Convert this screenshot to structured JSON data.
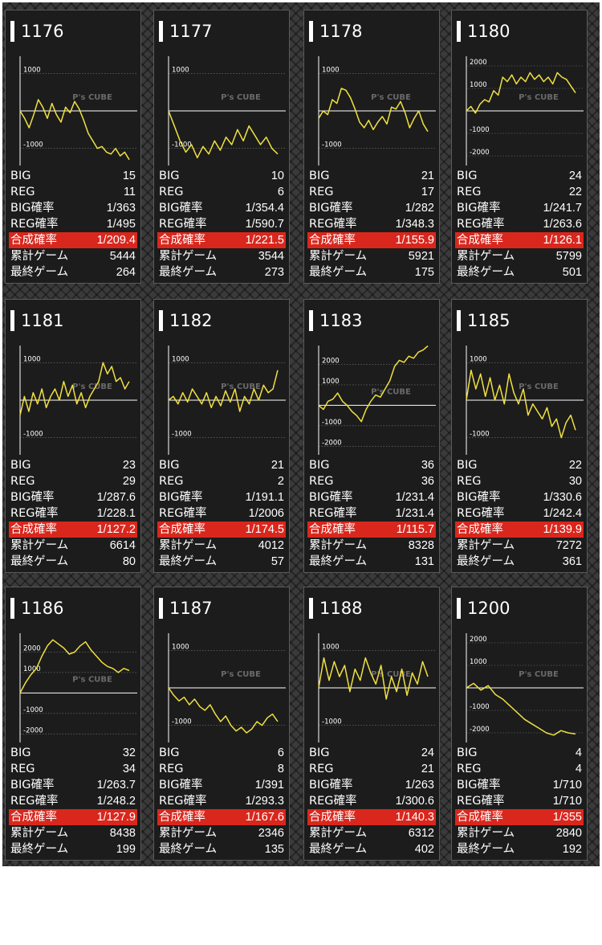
{
  "labels": {
    "big": "BIG",
    "reg": "REG",
    "big_rate": "BIG確率",
    "reg_rate": "REG確率",
    "combined": "合成確率",
    "total_games": "累計ゲーム",
    "last_game": "最終ゲーム"
  },
  "watermark": "P's CUBE",
  "colors": {
    "line": "#f0e040",
    "axis": "#ffffff",
    "highlight": "#d9271d",
    "card_bg": "#1c1c1c"
  },
  "machines": [
    {
      "id": "1176",
      "big": "15",
      "reg": "11",
      "big_rate": "1/363",
      "reg_rate": "1/495",
      "combined": "1/209.4",
      "total_games": "5444",
      "last_game": "264"
    },
    {
      "id": "1177",
      "big": "10",
      "reg": "6",
      "big_rate": "1/354.4",
      "reg_rate": "1/590.7",
      "combined": "1/221.5",
      "total_games": "3544",
      "last_game": "273"
    },
    {
      "id": "1178",
      "big": "21",
      "reg": "17",
      "big_rate": "1/282",
      "reg_rate": "1/348.3",
      "combined": "1/155.9",
      "total_games": "5921",
      "last_game": "175"
    },
    {
      "id": "1180",
      "big": "24",
      "reg": "22",
      "big_rate": "1/241.7",
      "reg_rate": "1/263.6",
      "combined": "1/126.1",
      "total_games": "5799",
      "last_game": "501"
    },
    {
      "id": "1181",
      "big": "23",
      "reg": "29",
      "big_rate": "1/287.6",
      "reg_rate": "1/228.1",
      "combined": "1/127.2",
      "total_games": "6614",
      "last_game": "80"
    },
    {
      "id": "1182",
      "big": "21",
      "reg": "2",
      "big_rate": "1/191.1",
      "reg_rate": "1/2006",
      "combined": "1/174.5",
      "total_games": "4012",
      "last_game": "57"
    },
    {
      "id": "1183",
      "big": "36",
      "reg": "36",
      "big_rate": "1/231.4",
      "reg_rate": "1/231.4",
      "combined": "1/115.7",
      "total_games": "8328",
      "last_game": "131"
    },
    {
      "id": "1185",
      "big": "22",
      "reg": "30",
      "big_rate": "1/330.6",
      "reg_rate": "1/242.4",
      "combined": "1/139.9",
      "total_games": "7272",
      "last_game": "361"
    },
    {
      "id": "1186",
      "big": "32",
      "reg": "34",
      "big_rate": "1/263.7",
      "reg_rate": "1/248.2",
      "combined": "1/127.9",
      "total_games": "8438",
      "last_game": "199"
    },
    {
      "id": "1187",
      "big": "6",
      "reg": "8",
      "big_rate": "1/391",
      "reg_rate": "1/293.3",
      "combined": "1/167.6",
      "total_games": "2346",
      "last_game": "135"
    },
    {
      "id": "1188",
      "big": "24",
      "reg": "21",
      "big_rate": "1/263",
      "reg_rate": "1/300.6",
      "combined": "1/140.3",
      "total_games": "6312",
      "last_game": "402"
    },
    {
      "id": "1200",
      "big": "4",
      "reg": "4",
      "big_rate": "1/710",
      "reg_rate": "1/710",
      "combined": "1/355",
      "total_games": "2840",
      "last_game": "192"
    }
  ],
  "chart_data": [
    {
      "type": "line",
      "name": "1176",
      "ylim": [
        -1500,
        1500
      ],
      "yticks": [
        1000,
        -1000
      ],
      "y": [
        0,
        -200,
        -450,
        -100,
        300,
        100,
        -200,
        200,
        -100,
        -300,
        100,
        -50,
        250,
        50,
        -250,
        -600,
        -800,
        -1000,
        -950,
        -1100,
        -1150,
        -1000,
        -1200,
        -1100,
        -1300
      ]
    },
    {
      "type": "line",
      "name": "1177",
      "ylim": [
        -1500,
        1500
      ],
      "yticks": [
        1000,
        -1000
      ],
      "y": [
        0,
        -400,
        -800,
        -1100,
        -900,
        -1250,
        -950,
        -1150,
        -800,
        -1050,
        -700,
        -900,
        -500,
        -800,
        -400,
        -650,
        -900,
        -700,
        -1000,
        -1150
      ]
    },
    {
      "type": "line",
      "name": "1178",
      "ylim": [
        -1500,
        1500
      ],
      "yticks": [
        1000,
        -1000
      ],
      "y": [
        -200,
        0,
        -100,
        300,
        200,
        600,
        550,
        350,
        50,
        -300,
        -450,
        -250,
        -500,
        -300,
        -150,
        -350,
        100,
        50,
        250,
        -50,
        -450,
        -200,
        0,
        -350,
        -550
      ]
    },
    {
      "type": "line",
      "name": "1180",
      "ylim": [
        -2500,
        2500
      ],
      "yticks": [
        2000,
        1000,
        -1000,
        -2000
      ],
      "y": [
        0,
        200,
        -100,
        300,
        500,
        400,
        900,
        700,
        1500,
        1300,
        1600,
        1200,
        1500,
        1300,
        1700,
        1400,
        1600,
        1300,
        1500,
        1200,
        1700,
        1500,
        1400,
        1100,
        800
      ]
    },
    {
      "type": "line",
      "name": "1181",
      "ylim": [
        -1500,
        1500
      ],
      "yticks": [
        1000,
        -1000
      ],
      "y": [
        -400,
        100,
        -300,
        200,
        -100,
        300,
        -200,
        100,
        300,
        0,
        500,
        100,
        400,
        -100,
        200,
        -200,
        100,
        300,
        500,
        1000,
        700,
        900,
        500,
        600,
        300,
        500
      ]
    },
    {
      "type": "line",
      "name": "1182",
      "ylim": [
        -1500,
        1500
      ],
      "yticks": [
        1000,
        -1000
      ],
      "y": [
        0,
        100,
        -100,
        200,
        -50,
        300,
        100,
        -100,
        200,
        -200,
        100,
        -150,
        250,
        -50,
        300,
        -300,
        100,
        -100,
        300,
        0,
        400,
        200,
        300,
        800
      ]
    },
    {
      "type": "line",
      "name": "1183",
      "ylim": [
        -2500,
        3000
      ],
      "yticks": [
        2000,
        1000,
        -1000,
        -2000
      ],
      "y": [
        0,
        -200,
        200,
        300,
        600,
        200,
        0,
        -300,
        -500,
        -800,
        -200,
        200,
        500,
        400,
        800,
        1200,
        1900,
        2200,
        2100,
        2400,
        2300,
        2600,
        2700,
        2900
      ]
    },
    {
      "type": "line",
      "name": "1185",
      "ylim": [
        -1500,
        1500
      ],
      "yticks": [
        1000,
        -1000
      ],
      "y": [
        0,
        800,
        300,
        700,
        100,
        600,
        0,
        400,
        -100,
        700,
        200,
        -100,
        300,
        -400,
        -100,
        -300,
        -500,
        -200,
        -700,
        -500,
        -1000,
        -600,
        -400,
        -800
      ]
    },
    {
      "type": "line",
      "name": "1186",
      "ylim": [
        -2500,
        3000
      ],
      "yticks": [
        2000,
        1000,
        -1000,
        -2000
      ],
      "y": [
        0,
        500,
        900,
        1200,
        1800,
        2300,
        2600,
        2400,
        2200,
        1900,
        2000,
        2300,
        2500,
        2100,
        1800,
        1500,
        1300,
        1200,
        1000,
        1200,
        1100
      ]
    },
    {
      "type": "line",
      "name": "1187",
      "ylim": [
        -1500,
        1500
      ],
      "yticks": [
        1000,
        -1000
      ],
      "y": [
        0,
        -200,
        -350,
        -250,
        -450,
        -300,
        -500,
        -600,
        -450,
        -700,
        -900,
        -750,
        -1000,
        -1150,
        -1050,
        -1200,
        -1100,
        -900,
        -1000,
        -800,
        -700,
        -900
      ]
    },
    {
      "type": "line",
      "name": "1188",
      "ylim": [
        -1500,
        1500
      ],
      "yticks": [
        1000,
        -1000
      ],
      "y": [
        0,
        800,
        200,
        700,
        300,
        600,
        -100,
        500,
        200,
        800,
        400,
        100,
        600,
        -300,
        300,
        -100,
        500,
        -200,
        400,
        100,
        700,
        300
      ]
    },
    {
      "type": "line",
      "name": "1200",
      "ylim": [
        -2500,
        2500
      ],
      "yticks": [
        2000,
        1000,
        -1000,
        -2000
      ],
      "y": [
        0,
        200,
        -100,
        100,
        -300,
        -500,
        -800,
        -1100,
        -1400,
        -1600,
        -1800,
        -2000,
        -2100,
        -1900,
        -2000,
        -2050
      ]
    }
  ]
}
